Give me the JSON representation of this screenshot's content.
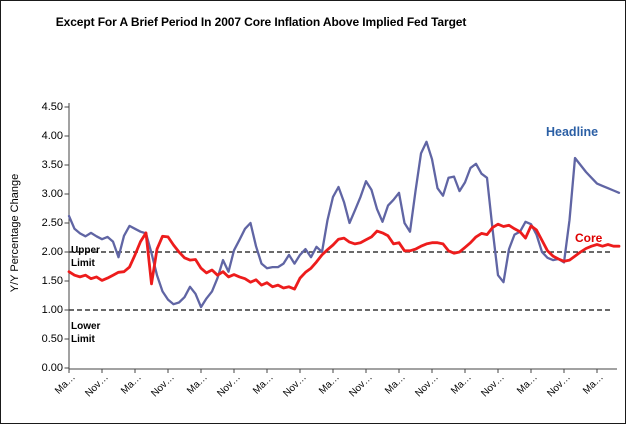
{
  "chart": {
    "title": "Except For A Brief Period In 2007 Core Inflation Above Implied Fed Target",
    "y_axis_title": "Y/Y Percentage Change",
    "headline_label": "Headline",
    "core_label": "Core",
    "upper_limit_label": "Upper Limit",
    "lower_limit_label": "Lower Limit"
  },
  "colors": {
    "headline_line": "#6065A4",
    "headline_text": "#2B5FA5",
    "core_line": "#ED1C1C",
    "core_text": "#DE0000",
    "limit_line": "#111111",
    "axis": "#444444"
  },
  "chart_data": {
    "type": "line",
    "title": "Except For A Brief Period In 2007 Core Inflation Above Implied Fed Target",
    "xlabel": "",
    "ylabel": "Y/Y Percentage Change",
    "ylim": [
      0,
      4.5
    ],
    "ytick_step": 0.5,
    "ytick_labels": [
      "4.50",
      "4.00",
      "3.50",
      "3.00",
      "2.50",
      "2.00",
      "1.50",
      "1.00",
      "0.50",
      "0.00"
    ],
    "xtick_labels": [
      "Ma…",
      "Nov…",
      "Ma…",
      "Nov…",
      "Ma…",
      "Nov…",
      "Ma…",
      "Nov…",
      "Ma…",
      "Nov…",
      "Ma…",
      "Nov…",
      "Ma…",
      "Nov…",
      "Ma…",
      "Nov…",
      "Ma…"
    ],
    "xtick_every": 6,
    "grid": false,
    "legend_position": "inline-labels",
    "upper_limit": 2.0,
    "lower_limit": 1.0,
    "annotations": [
      {
        "text": "Upper Limit",
        "y": 2.0
      },
      {
        "text": "Lower Limit",
        "y": 1.0
      }
    ],
    "series": [
      {
        "name": "Headline",
        "color": "#6065A4",
        "values": [
          2.62,
          2.4,
          2.32,
          2.27,
          2.33,
          2.27,
          2.22,
          2.26,
          2.18,
          1.91,
          2.28,
          2.45,
          2.4,
          2.35,
          2.32,
          1.98,
          1.6,
          1.32,
          1.18,
          1.1,
          1.13,
          1.22,
          1.4,
          1.28,
          1.05,
          1.2,
          1.32,
          1.55,
          1.86,
          1.66,
          2.03,
          2.21,
          2.4,
          2.5,
          2.1,
          1.8,
          1.72,
          1.74,
          1.74,
          1.8,
          1.95,
          1.8,
          1.95,
          2.05,
          1.91,
          2.09,
          2.0,
          2.55,
          2.95,
          3.12,
          2.86,
          2.5,
          2.72,
          2.95,
          3.22,
          3.07,
          2.74,
          2.52,
          2.8,
          2.9,
          3.02,
          2.5,
          2.35,
          3.05,
          3.7,
          3.9,
          3.6,
          3.1,
          2.97,
          3.28,
          3.3,
          3.05,
          3.2,
          3.45,
          3.52,
          3.35,
          3.28,
          2.4,
          1.6,
          1.48,
          2.05,
          2.3,
          2.35,
          2.52,
          2.48,
          2.3,
          2.0,
          1.9,
          1.86,
          1.88,
          1.82,
          2.55,
          3.62,
          3.5,
          3.38,
          3.28,
          3.18,
          3.14,
          3.1,
          3.06,
          3.02
        ]
      },
      {
        "name": "Core",
        "color": "#ED1C1C",
        "values": [
          1.66,
          1.6,
          1.57,
          1.6,
          1.54,
          1.57,
          1.51,
          1.55,
          1.6,
          1.65,
          1.66,
          1.74,
          1.95,
          2.18,
          2.33,
          1.45,
          2.05,
          2.27,
          2.26,
          2.12,
          2.0,
          1.9,
          1.86,
          1.87,
          1.72,
          1.64,
          1.69,
          1.6,
          1.66,
          1.57,
          1.61,
          1.57,
          1.54,
          1.48,
          1.52,
          1.43,
          1.47,
          1.4,
          1.43,
          1.38,
          1.4,
          1.36,
          1.55,
          1.65,
          1.72,
          1.83,
          1.95,
          2.04,
          2.12,
          2.22,
          2.24,
          2.17,
          2.14,
          2.16,
          2.21,
          2.26,
          2.36,
          2.33,
          2.28,
          2.14,
          2.16,
          2.02,
          2.02,
          2.05,
          2.1,
          2.14,
          2.16,
          2.16,
          2.14,
          2.02,
          1.98,
          2.0,
          2.08,
          2.16,
          2.26,
          2.32,
          2.3,
          2.42,
          2.48,
          2.44,
          2.46,
          2.4,
          2.35,
          2.24,
          2.45,
          2.38,
          2.2,
          2.02,
          1.93,
          1.88,
          1.84,
          1.86,
          1.93,
          2.0,
          2.06,
          2.1,
          2.13,
          2.1,
          2.13,
          2.1,
          2.1
        ]
      }
    ]
  }
}
